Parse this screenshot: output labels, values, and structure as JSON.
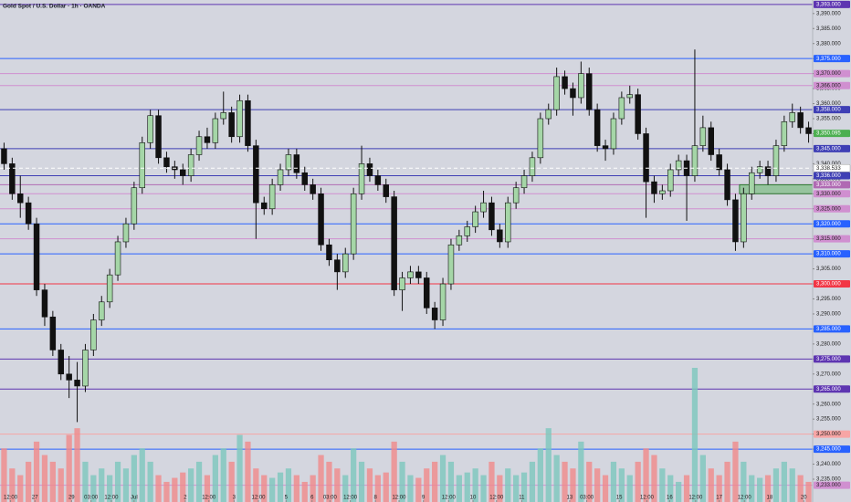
{
  "chart_data": {
    "type": "candlestick",
    "title": "Gold Spot / U.S. Dollar · 1h · OANDA",
    "open": [
      3345,
      3340,
      3330,
      3327,
      3320,
      3298,
      3289,
      3278,
      3270,
      3268,
      3266,
      3278,
      3288,
      3294,
      3303,
      3314,
      3320,
      3332,
      3347,
      3356,
      3342,
      3339,
      3338,
      3336,
      3343,
      3349,
      3347,
      3355,
      3357,
      3349,
      3361,
      3346,
      3327,
      3325,
      3333,
      3338,
      3343,
      3337,
      3333,
      3330,
      3313,
      3308,
      3304,
      3310,
      3330,
      3340,
      3336,
      3333,
      3329,
      3298,
      3302,
      3304,
      3302,
      3292,
      3288,
      3300,
      3313,
      3316,
      3319,
      3324,
      3327,
      3318,
      3314,
      3327,
      3332,
      3336,
      3342,
      3355,
      3358,
      3369,
      3365,
      3362,
      3370,
      3358,
      3346,
      3345,
      3355,
      3362,
      3363,
      3350,
      3334,
      3330,
      3331,
      3338,
      3341,
      3336,
      3346,
      3352,
      3343,
      3338,
      3328,
      3314,
      3330,
      3337,
      3339,
      3336,
      3346,
      3354,
      3357,
      3352
    ],
    "high": [
      3347,
      3342,
      3336,
      3329,
      3322,
      3300,
      3291,
      3280,
      3276,
      3274,
      3280,
      3290,
      3296,
      3305,
      3316,
      3322,
      3334,
      3349,
      3358,
      3358,
      3344,
      3341,
      3340,
      3345,
      3351,
      3352,
      3357,
      3364,
      3359,
      3363,
      3363,
      3348,
      3329,
      3335,
      3340,
      3345,
      3345,
      3339,
      3335,
      3332,
      3315,
      3310,
      3312,
      3332,
      3346,
      3342,
      3338,
      3335,
      3331,
      3304,
      3306,
      3306,
      3304,
      3294,
      3302,
      3315,
      3318,
      3321,
      3326,
      3331,
      3329,
      3320,
      3329,
      3334,
      3338,
      3344,
      3357,
      3360,
      3372,
      3371,
      3367,
      3374,
      3372,
      3360,
      3348,
      3357,
      3364,
      3366,
      3365,
      3352,
      3336,
      3333,
      3340,
      3343,
      3343,
      3378,
      3356,
      3354,
      3345,
      3340,
      3330,
      3332,
      3339,
      3341,
      3341,
      3348,
      3356,
      3360,
      3359,
      3354
    ],
    "low": [
      3338,
      3328,
      3322,
      3318,
      3296,
      3286,
      3276,
      3268,
      3262,
      3254,
      3264,
      3276,
      3286,
      3292,
      3301,
      3312,
      3318,
      3330,
      3345,
      3340,
      3337,
      3335,
      3333,
      3334,
      3341,
      3345,
      3345,
      3353,
      3347,
      3347,
      3344,
      3315,
      3323,
      3323,
      3331,
      3336,
      3335,
      3331,
      3328,
      3311,
      3306,
      3298,
      3302,
      3308,
      3328,
      3334,
      3331,
      3327,
      3296,
      3291,
      3300,
      3300,
      3290,
      3285,
      3286,
      3298,
      3311,
      3314,
      3317,
      3322,
      3316,
      3312,
      3312,
      3325,
      3330,
      3334,
      3340,
      3353,
      3356,
      3363,
      3356,
      3360,
      3356,
      3344,
      3341,
      3343,
      3353,
      3360,
      3348,
      3322,
      3327,
      3328,
      3329,
      3336,
      3321,
      3334,
      3344,
      3341,
      3336,
      3326,
      3311,
      3312,
      3328,
      3335,
      3333,
      3334,
      3344,
      3352,
      3350,
      3347
    ],
    "close": [
      3340,
      3330,
      3327,
      3320,
      3298,
      3289,
      3278,
      3270,
      3268,
      3266,
      3278,
      3288,
      3294,
      3303,
      3314,
      3320,
      3332,
      3347,
      3356,
      3342,
      3339,
      3338,
      3336,
      3343,
      3349,
      3347,
      3355,
      3357,
      3349,
      3361,
      3346,
      3327,
      3325,
      3333,
      3338,
      3343,
      3337,
      3333,
      3330,
      3313,
      3308,
      3304,
      3310,
      3330,
      3340,
      3336,
      3333,
      3329,
      3298,
      3302,
      3304,
      3302,
      3292,
      3288,
      3300,
      3313,
      3316,
      3319,
      3324,
      3327,
      3318,
      3314,
      3327,
      3332,
      3336,
      3342,
      3355,
      3358,
      3369,
      3365,
      3362,
      3370,
      3358,
      3346,
      3345,
      3355,
      3362,
      3363,
      3350,
      3334,
      3330,
      3331,
      3338,
      3341,
      3336,
      3346,
      3352,
      3343,
      3338,
      3328,
      3314,
      3330,
      3337,
      3339,
      3336,
      3346,
      3354,
      3357,
      3352,
      3350
    ],
    "volume": [
      40,
      25,
      20,
      30,
      45,
      35,
      30,
      25,
      50,
      55,
      30,
      20,
      25,
      20,
      30,
      25,
      35,
      40,
      30,
      20,
      15,
      18,
      22,
      25,
      30,
      20,
      35,
      40,
      30,
      50,
      45,
      25,
      20,
      18,
      22,
      25,
      20,
      15,
      20,
      35,
      30,
      25,
      20,
      40,
      30,
      25,
      20,
      22,
      45,
      30,
      20,
      18,
      25,
      30,
      35,
      30,
      20,
      22,
      25,
      20,
      30,
      20,
      25,
      20,
      22,
      30,
      40,
      55,
      35,
      30,
      25,
      45,
      30,
      25,
      20,
      30,
      25,
      20,
      30,
      40,
      35,
      25,
      20,
      15,
      20,
      100,
      35,
      25,
      20,
      30,
      45,
      30,
      20,
      18,
      20,
      25,
      30,
      25,
      20,
      15
    ],
    "up_color": "#a5d6a7",
    "down_color": "#111111",
    "volume_up_color": "#7cc7bd",
    "volume_down_color": "#f08a8a",
    "xlim": [
      0,
      100
    ],
    "xticks": [
      {
        "value": 1.3,
        "label": "12:00"
      },
      {
        "value": 4.3,
        "label": "27"
      },
      {
        "value": 8.8,
        "label": "29"
      },
      {
        "value": 11.2,
        "label": "03:00"
      },
      {
        "value": 13.7,
        "label": "12:00"
      },
      {
        "value": 16.5,
        "label": "Jul"
      },
      {
        "value": 22.8,
        "label": "2"
      },
      {
        "value": 25.7,
        "label": "12:00"
      },
      {
        "value": 28.8,
        "label": "3"
      },
      {
        "value": 31.8,
        "label": "12:00"
      },
      {
        "value": 35.2,
        "label": "5"
      },
      {
        "value": 38.4,
        "label": "6"
      },
      {
        "value": 40.6,
        "label": "03:00"
      },
      {
        "value": 43.1,
        "label": "12:00"
      },
      {
        "value": 46.2,
        "label": "8"
      },
      {
        "value": 49.1,
        "label": "12:00"
      },
      {
        "value": 52.1,
        "label": "9"
      },
      {
        "value": 55.2,
        "label": "12:00"
      },
      {
        "value": 58.2,
        "label": "10"
      },
      {
        "value": 61.1,
        "label": "12:00"
      },
      {
        "value": 64.2,
        "label": "11"
      },
      {
        "value": 70.1,
        "label": "13"
      },
      {
        "value": 72.2,
        "label": "03:00"
      },
      {
        "value": 76.2,
        "label": "15"
      },
      {
        "value": 79.6,
        "label": "12:00"
      },
      {
        "value": 82.4,
        "label": "16"
      },
      {
        "value": 85.6,
        "label": "12:00"
      },
      {
        "value": 88.5,
        "label": "17"
      },
      {
        "value": 91.6,
        "label": "12:00"
      },
      {
        "value": 94.7,
        "label": "18"
      },
      {
        "value": 98.9,
        "label": "20"
      }
    ],
    "ylim": [
      3227.4,
      3394.5
    ],
    "yticks": [
      {
        "value": 3390,
        "label": "3,390.000"
      },
      {
        "value": 3385,
        "label": "3,385.000"
      },
      {
        "value": 3380,
        "label": "3,380.000"
      },
      {
        "value": 3375,
        "label": "3,375.000"
      },
      {
        "value": 3370,
        "label": "3,370.000"
      },
      {
        "value": 3365,
        "label": "3,365.000"
      },
      {
        "value": 3360,
        "label": "3,360.000"
      },
      {
        "value": 3355,
        "label": "3,355.000"
      },
      {
        "value": 3350,
        "label": "3,350.000"
      },
      {
        "value": 3345,
        "label": "3,345.000"
      },
      {
        "value": 3340,
        "label": "3,340.000"
      },
      {
        "value": 3335,
        "label": "3,335.000"
      },
      {
        "value": 3330,
        "label": "3,330.000"
      },
      {
        "value": 3325,
        "label": "3,325.000"
      },
      {
        "value": 3320,
        "label": "3,320.000"
      },
      {
        "value": 3315,
        "label": "3,315.000"
      },
      {
        "value": 3310,
        "label": "3,310.000"
      },
      {
        "value": 3305,
        "label": "3,305.000"
      },
      {
        "value": 3300,
        "label": "3,300.000"
      },
      {
        "value": 3295,
        "label": "3,295.000"
      },
      {
        "value": 3290,
        "label": "3,290.000"
      },
      {
        "value": 3285,
        "label": "3,285.000"
      },
      {
        "value": 3280,
        "label": "3,280.000"
      },
      {
        "value": 3275,
        "label": "3,275.000"
      },
      {
        "value": 3270,
        "label": "3,270.000"
      },
      {
        "value": 3265,
        "label": "3,265.000"
      },
      {
        "value": 3260,
        "label": "3,260.000"
      },
      {
        "value": 3255,
        "label": "3,255.000"
      },
      {
        "value": 3250,
        "label": "3,250.000"
      },
      {
        "value": 3245,
        "label": "3,245.000"
      },
      {
        "value": 3240,
        "label": "3,240.000"
      },
      {
        "value": 3235,
        "label": "3,235.000"
      }
    ],
    "levels": [
      {
        "value": 3393,
        "label": "3,393.000",
        "color": "#5e35b1"
      },
      {
        "value": 3375,
        "label": "3,375.000",
        "color": "#2962ff"
      },
      {
        "value": 3370,
        "label": "3,370.000",
        "color": "#d08fd0"
      },
      {
        "value": 3366,
        "label": "3,366.000",
        "color": "#d08fd0"
      },
      {
        "value": 3358,
        "label": "3,358.000",
        "color": "#3f3fb5"
      },
      {
        "value": 3345,
        "label": "3,345.000",
        "color": "#3f3fb5"
      },
      {
        "value": 3336,
        "label": "3,336.000",
        "color": "#3f3fb5"
      },
      {
        "value": 3333,
        "label": "3,333.000",
        "color": "#b06ab3"
      },
      {
        "value": 3330,
        "label": "3,330.000",
        "color": "#d08fd0"
      },
      {
        "value": 3325,
        "label": "3,325.000",
        "color": "#d08fd0"
      },
      {
        "value": 3320,
        "label": "3,320.000",
        "color": "#2962ff"
      },
      {
        "value": 3315,
        "label": "3,315.000",
        "color": "#d08fd0"
      },
      {
        "value": 3310,
        "label": "3,310.000",
        "color": "#2962ff"
      },
      {
        "value": 3300,
        "label": "3,300.000",
        "color": "#f23645"
      },
      {
        "value": 3285,
        "label": "3,285.000",
        "color": "#2962ff"
      },
      {
        "value": 3275,
        "label": "3,275.000",
        "color": "#5e35b1"
      },
      {
        "value": 3265,
        "label": "3,265.000",
        "color": "#5e35b1"
      },
      {
        "value": 3250,
        "label": "3,250.000",
        "color": "#f7a5a5"
      },
      {
        "value": 3245,
        "label": "3,245.000",
        "color": "#2962ff"
      },
      {
        "value": 3233,
        "label": "3,233.000",
        "color": "#d08fd0"
      }
    ],
    "price": {
      "value": 3350.095,
      "label": "3,350.095",
      "color": "#4caf50"
    },
    "reference": {
      "value": 3338.533,
      "label": "3,338.533"
    },
    "zone": {
      "from": 3330,
      "to": 3333,
      "start": 91,
      "color": "#4caf50"
    }
  }
}
